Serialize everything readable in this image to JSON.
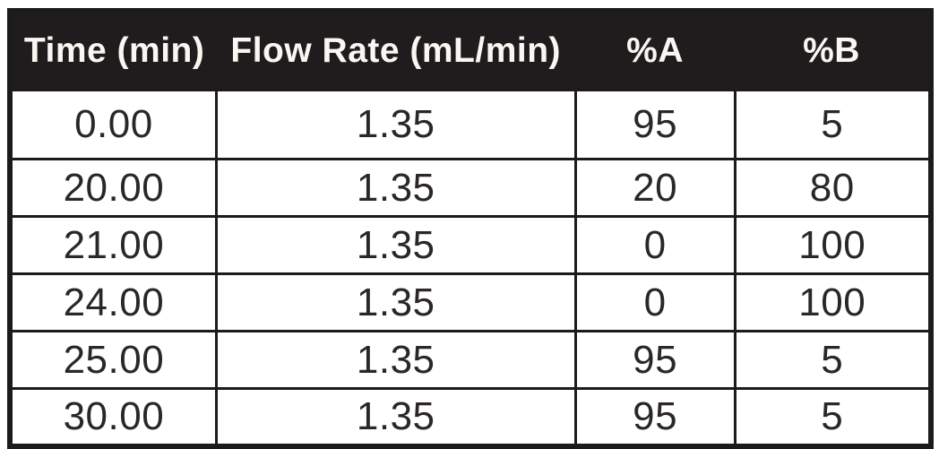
{
  "table": {
    "columns": [
      {
        "label": "Time (min)"
      },
      {
        "label": "Flow Rate (mL/min)"
      },
      {
        "label": "%A"
      },
      {
        "label": "%B"
      }
    ],
    "rows": [
      [
        "0.00",
        "1.35",
        "95",
        "5"
      ],
      [
        "20.00",
        "1.35",
        "20",
        "80"
      ],
      [
        "21.00",
        "1.35",
        "0",
        "100"
      ],
      [
        "24.00",
        "1.35",
        "0",
        "100"
      ],
      [
        "25.00",
        "1.35",
        "95",
        "5"
      ],
      [
        "30.00",
        "1.35",
        "95",
        "5"
      ]
    ]
  },
  "chart_data": {
    "type": "table",
    "title": "",
    "columns": [
      "Time (min)",
      "Flow Rate (mL/min)",
      "%A",
      "%B"
    ],
    "rows": [
      [
        0.0,
        1.35,
        95,
        5
      ],
      [
        20.0,
        1.35,
        20,
        80
      ],
      [
        21.0,
        1.35,
        0,
        100
      ],
      [
        24.0,
        1.35,
        0,
        100
      ],
      [
        25.0,
        1.35,
        95,
        5
      ],
      [
        30.0,
        1.35,
        95,
        5
      ]
    ]
  },
  "colors": {
    "header_bg": "#1f1c1d",
    "header_text": "#faf7f2",
    "body_text": "#2b2728",
    "border": "#1d1a1b",
    "background": "#ffffff"
  }
}
